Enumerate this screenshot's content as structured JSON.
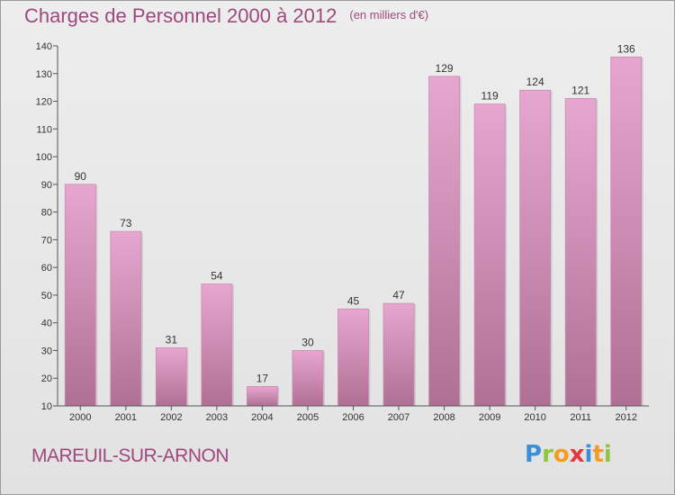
{
  "header": {
    "title": "Charges de Personnel 2000 à 2012",
    "subtitle": "(en milliers d'€)"
  },
  "footer": {
    "commune": "MAREUIL-SUR-ARNON",
    "logo_letters": [
      {
        "char": "P",
        "color": "#3a8fd8"
      },
      {
        "char": "r",
        "color": "#8dc63f"
      },
      {
        "char": "o",
        "color": "#f39c1f"
      },
      {
        "char": "x",
        "color": "#e8363b"
      },
      {
        "char": "i",
        "color": "#3a8fd8"
      },
      {
        "char": "t",
        "color": "#f39c1f"
      },
      {
        "char": "i",
        "color": "#8dc63f"
      }
    ]
  },
  "colors": {
    "bar_top": "#e6a6cf",
    "bar_bottom": "#b07095",
    "accent": "#a0487e"
  },
  "chart_data": {
    "type": "bar",
    "title": "Charges de Personnel 2000 à 2012",
    "subtitle": "(en milliers d'€)",
    "categories": [
      "2000",
      "2001",
      "2002",
      "2003",
      "2004",
      "2005",
      "2006",
      "2007",
      "2008",
      "2009",
      "2010",
      "2011",
      "2012"
    ],
    "values": [
      90,
      73,
      31,
      54,
      17,
      30,
      45,
      47,
      129,
      119,
      124,
      121,
      136
    ],
    "xlabel": "",
    "ylabel": "",
    "ylim": [
      10,
      140
    ],
    "yticks": [
      10,
      20,
      30,
      40,
      50,
      60,
      70,
      80,
      90,
      100,
      110,
      120,
      130,
      140
    ],
    "grid": false,
    "data_labels": true
  }
}
